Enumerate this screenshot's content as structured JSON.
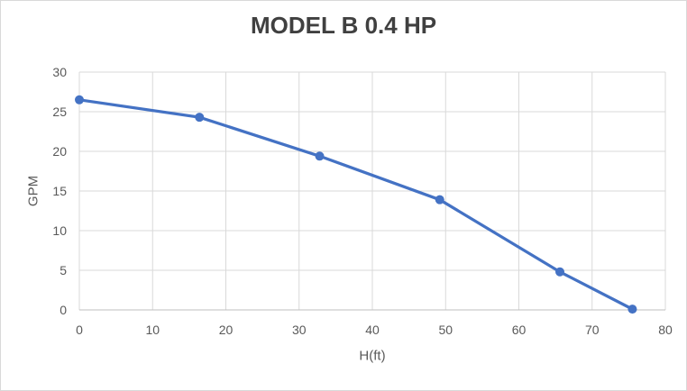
{
  "chart_data": {
    "type": "line",
    "title": "MODEL B 0.4 HP",
    "xlabel": "H(ft)",
    "ylabel": "GPM",
    "series": [
      {
        "x": [
          0,
          16.4,
          32.8,
          49.2,
          65.6,
          75.5
        ],
        "y": [
          26.5,
          24.3,
          19.4,
          13.9,
          4.8,
          0.1
        ]
      }
    ],
    "xlim": [
      0,
      80
    ],
    "ylim": [
      0,
      30
    ],
    "xticks": [
      0,
      10,
      20,
      30,
      40,
      50,
      60,
      70,
      80
    ],
    "yticks": [
      0,
      5,
      10,
      15,
      20,
      25,
      30
    ],
    "grid": true,
    "legend": false,
    "marker": "circle",
    "colors": {
      "line": "#4472C4",
      "marker": "#4472C4",
      "gridline": "#D9D9D9",
      "axis_line": "#BFBFBF",
      "tick_text": "#595959",
      "axis_label_text": "#595959",
      "title_text": "#404040",
      "background": "#FFFFFF",
      "border": "#D9D9D9"
    }
  }
}
